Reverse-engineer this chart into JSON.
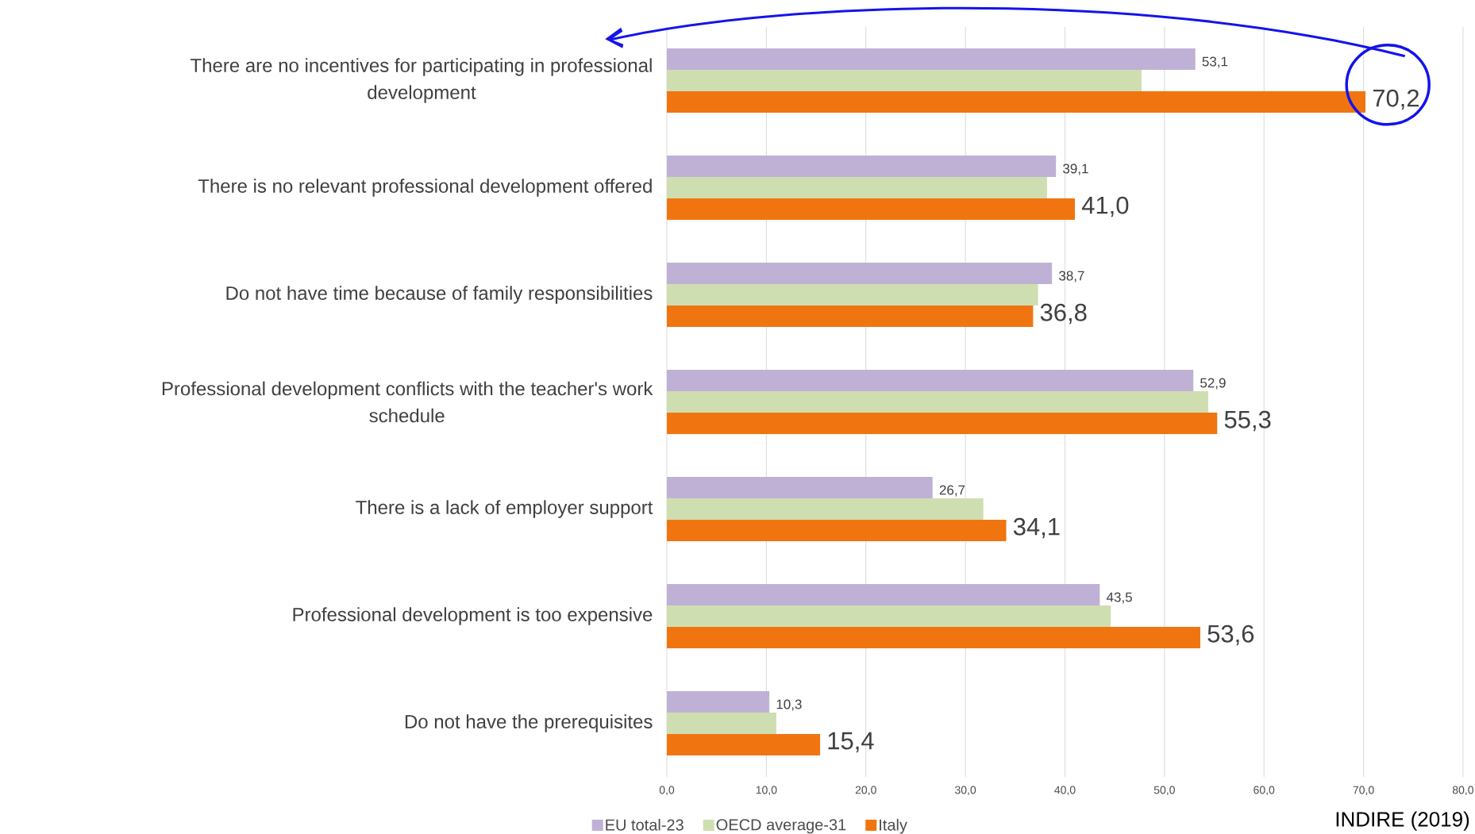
{
  "chart_data": {
    "type": "bar",
    "orientation": "horizontal",
    "categories": [
      "There are no incentives for participating in professional development",
      "There is no relevant professional development offered",
      "Do not have time because of family responsibilities",
      "Professional development conflicts with the teacher's work schedule",
      "There is a lack of employer support",
      "Professional development is too expensive",
      "Do not have the prerequisites"
    ],
    "series": [
      {
        "name": "EU total-23",
        "color": "#bfb1d5",
        "values": [
          53.1,
          39.1,
          38.7,
          52.9,
          26.7,
          43.5,
          10.3
        ],
        "value_labels": [
          "53,1",
          "39,1",
          "38,7",
          "52,9",
          "26,7",
          "43,5",
          "10,3"
        ]
      },
      {
        "name": "OECD average-31",
        "color": "#cfdeb0",
        "values": [
          47.7,
          38.2,
          37.3,
          54.4,
          31.8,
          44.6,
          11.0
        ]
      },
      {
        "name": "Italy",
        "color": "#f07511",
        "values": [
          70.2,
          41.0,
          36.8,
          55.3,
          34.1,
          53.6,
          15.4
        ],
        "value_labels": [
          "70,2",
          "41,0",
          "36,8",
          "55,3",
          "34,1",
          "53,6",
          "15,4"
        ]
      }
    ],
    "xlim": [
      0,
      80
    ],
    "xticks": [
      {
        "value": 0,
        "label": "0,0"
      },
      {
        "value": 10,
        "label": "10,0"
      },
      {
        "value": 20,
        "label": "20,0"
      },
      {
        "value": 30,
        "label": "30,0"
      },
      {
        "value": 40,
        "label": "40,0"
      },
      {
        "value": 50,
        "label": "50,0"
      },
      {
        "value": 60,
        "label": "60,0"
      },
      {
        "value": 70,
        "label": "70,0"
      },
      {
        "value": 80,
        "label": "80,0"
      }
    ],
    "grid": "x",
    "legend": "bottom",
    "annotations": [
      "INDIRE (2019)"
    ]
  }
}
